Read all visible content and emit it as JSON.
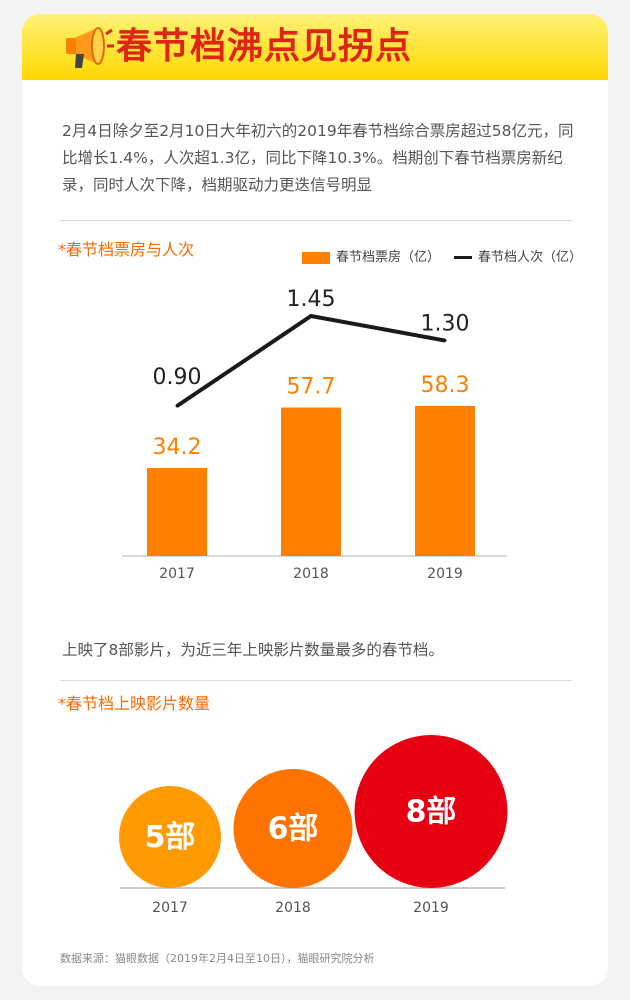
{
  "header": {
    "title": "春节档沸点见拐点"
  },
  "intro": "2月4日除夕至2月10日大年初六的2019年春节档综合票房超过58亿元，同比增长1.4%，人次超1.3亿，同比下降10.3%。档期创下春节档票房新纪录，同时人次下降，档期驱动力更迭信号明显",
  "section1": {
    "title": "*春节档票房与人次"
  },
  "section2": {
    "title": "*春节档上映影片数量"
  },
  "films_note": "上映了8部影片，为近三年上映影片数量最多的春节档。",
  "source": "数据来源：猫眼数据（2019年2月4日至10日），猫眼研究院分析",
  "colors": {
    "bar": "#ff7f00",
    "line": "#1a1a1a",
    "c2017": "#ff9a00",
    "c2018": "#ff7300",
    "c2019": "#e60012"
  },
  "chart_data": [
    {
      "type": "bar",
      "categories": [
        "2017",
        "2018",
        "2019"
      ],
      "series": [
        {
          "name": "春节档票房（亿）",
          "type": "bar",
          "values": [
            34.2,
            57.7,
            58.3
          ],
          "labels": [
            "34.2",
            "57.7",
            "58.3"
          ]
        },
        {
          "name": "春节档人次（亿）",
          "type": "line",
          "values": [
            0.9,
            1.45,
            1.3
          ],
          "labels": [
            "0.90",
            "1.45",
            "1.30"
          ]
        }
      ],
      "legend_position": "top-right",
      "grid": false
    },
    {
      "type": "bubble",
      "categories": [
        "2017",
        "2018",
        "2019"
      ],
      "values": [
        5,
        6,
        8
      ],
      "labels": [
        "5部",
        "6部",
        "8部"
      ]
    }
  ]
}
